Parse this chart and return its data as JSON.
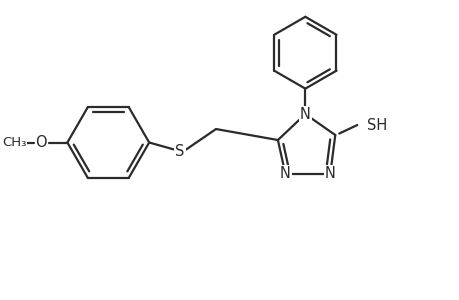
{
  "bg_color": "#ffffff",
  "line_color": "#2b2b2b",
  "line_width": 1.6,
  "font_size": 10.5,
  "figsize": [
    4.6,
    3.0
  ],
  "dpi": 100,
  "xlim": [
    0,
    9.2
  ],
  "ylim": [
    0,
    6.0
  ]
}
